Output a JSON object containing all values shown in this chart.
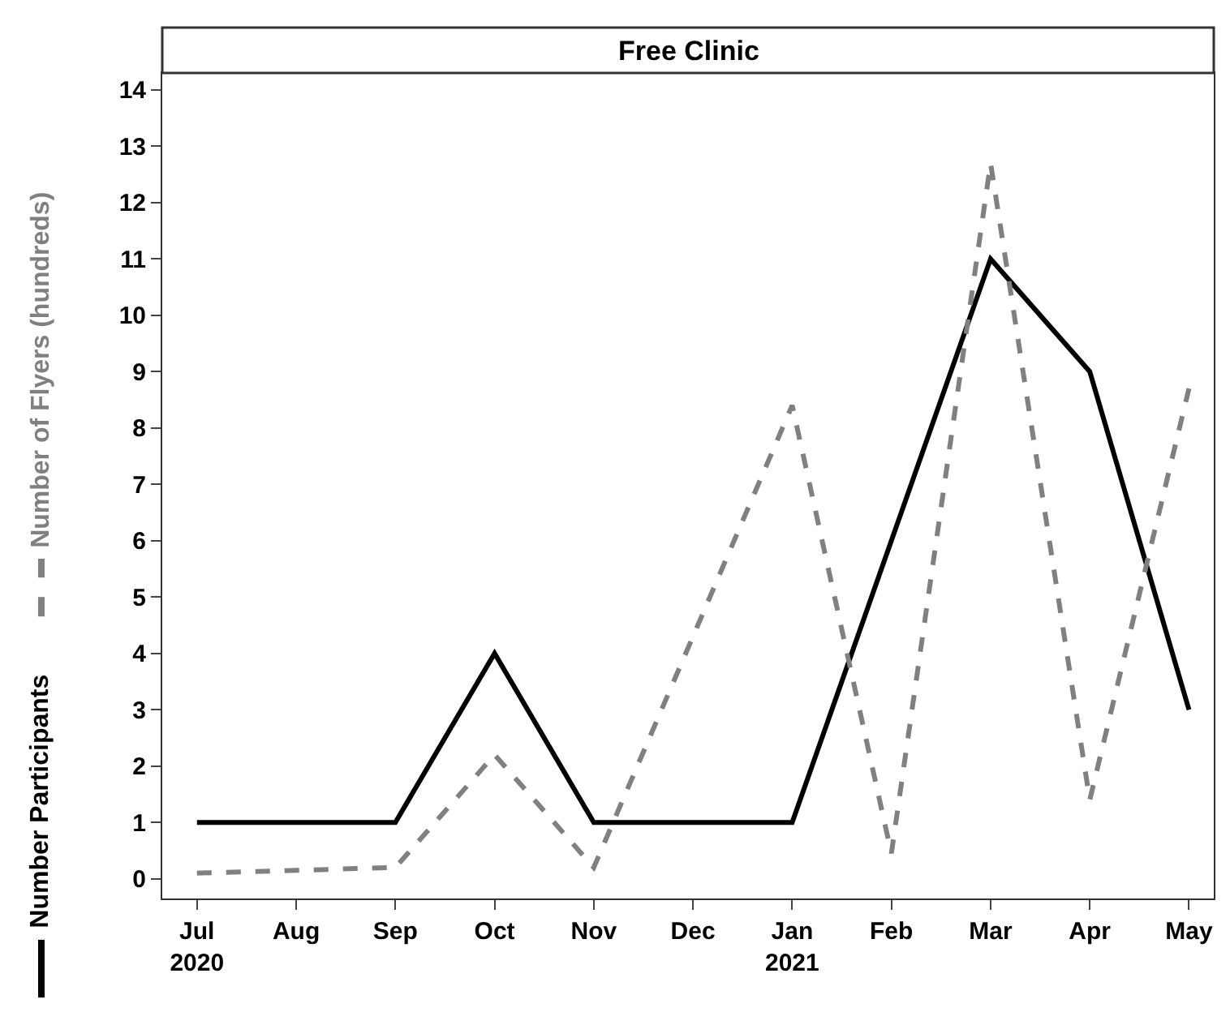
{
  "chart_data": {
    "type": "line",
    "title": "Free Clinic",
    "categories": [
      "Jul\n2020",
      "Aug",
      "Sep",
      "Oct",
      "Nov",
      "Dec",
      "Jan\n2021",
      "Feb",
      "Mar",
      "Apr",
      "May"
    ],
    "series": [
      {
        "name": "Number Participants",
        "color": "#000000",
        "line_style": "solid",
        "values": [
          1,
          1,
          1,
          4,
          1,
          1,
          1,
          6,
          11,
          9,
          3
        ]
      },
      {
        "name": "Number of Flyers (hundreds)",
        "color": "#808080",
        "line_style": "dashed",
        "values": [
          0.1,
          0.15,
          0.2,
          2.2,
          0.2,
          4.3,
          8.4,
          0.45,
          12.7,
          1.4,
          8.7
        ]
      }
    ],
    "ylim": [
      -0.35,
      14.3
    ],
    "yticks": [
      0,
      1,
      2,
      3,
      4,
      5,
      6,
      7,
      8,
      9,
      10,
      11,
      12,
      13,
      14
    ],
    "legend": "left",
    "marker": "none"
  }
}
